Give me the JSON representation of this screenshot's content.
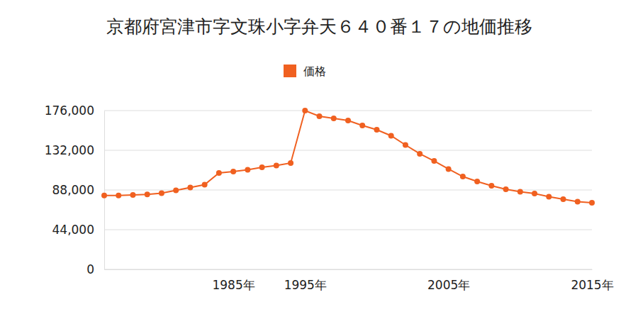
{
  "chart_data": {
    "type": "line",
    "title": "京都府宮津市字文珠小字弁天６４０番１７の地価推移",
    "categories": [
      null,
      null,
      null,
      null,
      null,
      null,
      null,
      null,
      null,
      "1985年",
      null,
      null,
      null,
      null,
      "1995年",
      null,
      null,
      null,
      null,
      null,
      null,
      null,
      null,
      null,
      "2005年",
      null,
      null,
      null,
      null,
      null,
      null,
      null,
      null,
      null,
      "2015年"
    ],
    "series": [
      {
        "name": "価格",
        "color": "#f06020",
        "marker": "circle",
        "values": [
          82000,
          82000,
          82500,
          83000,
          84500,
          87600,
          90700,
          93900,
          106900,
          108400,
          110400,
          113100,
          115100,
          117900,
          176000,
          169700,
          167400,
          165000,
          159500,
          154800,
          148100,
          137900,
          128100,
          120200,
          111200,
          102900,
          97400,
          92700,
          88800,
          86000,
          84100,
          80500,
          77800,
          75000,
          73900
        ]
      }
    ],
    "ylim": [
      0,
      176000
    ],
    "yticks": [
      0,
      {
        "value": 44000,
        "label": "44,000"
      },
      {
        "value": 88000,
        "label": "88,000"
      },
      {
        "value": 132000,
        "label": "132,000"
      },
      {
        "value": 176000,
        "label": "176,000"
      }
    ],
    "grid": true,
    "legend": "top"
  }
}
